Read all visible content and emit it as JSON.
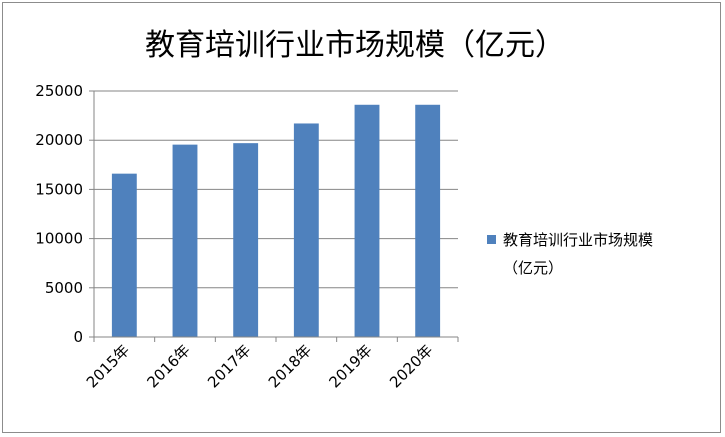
{
  "chart_data": {
    "type": "bar",
    "title": "教育培训行业市场规模（亿元）",
    "categories": [
      "2015年",
      "2016年",
      "2017年",
      "2018年",
      "2019年",
      "2020年"
    ],
    "series": [
      {
        "name": "教育培训行业市场规模（亿元）",
        "legend_lines": [
          "教育培训行业市场规模",
          "（亿元）"
        ],
        "values": [
          16600,
          19550,
          19700,
          21700,
          23600,
          23600
        ]
      }
    ],
    "ylim": [
      0,
      25000
    ],
    "yticks": [
      "0",
      "5000",
      "10000",
      "15000",
      "20000",
      "25000"
    ],
    "grid": true,
    "legend_position": "right",
    "colors": {
      "bar": "#4f81bd",
      "grid": "#868686",
      "axis": "#868686"
    }
  }
}
